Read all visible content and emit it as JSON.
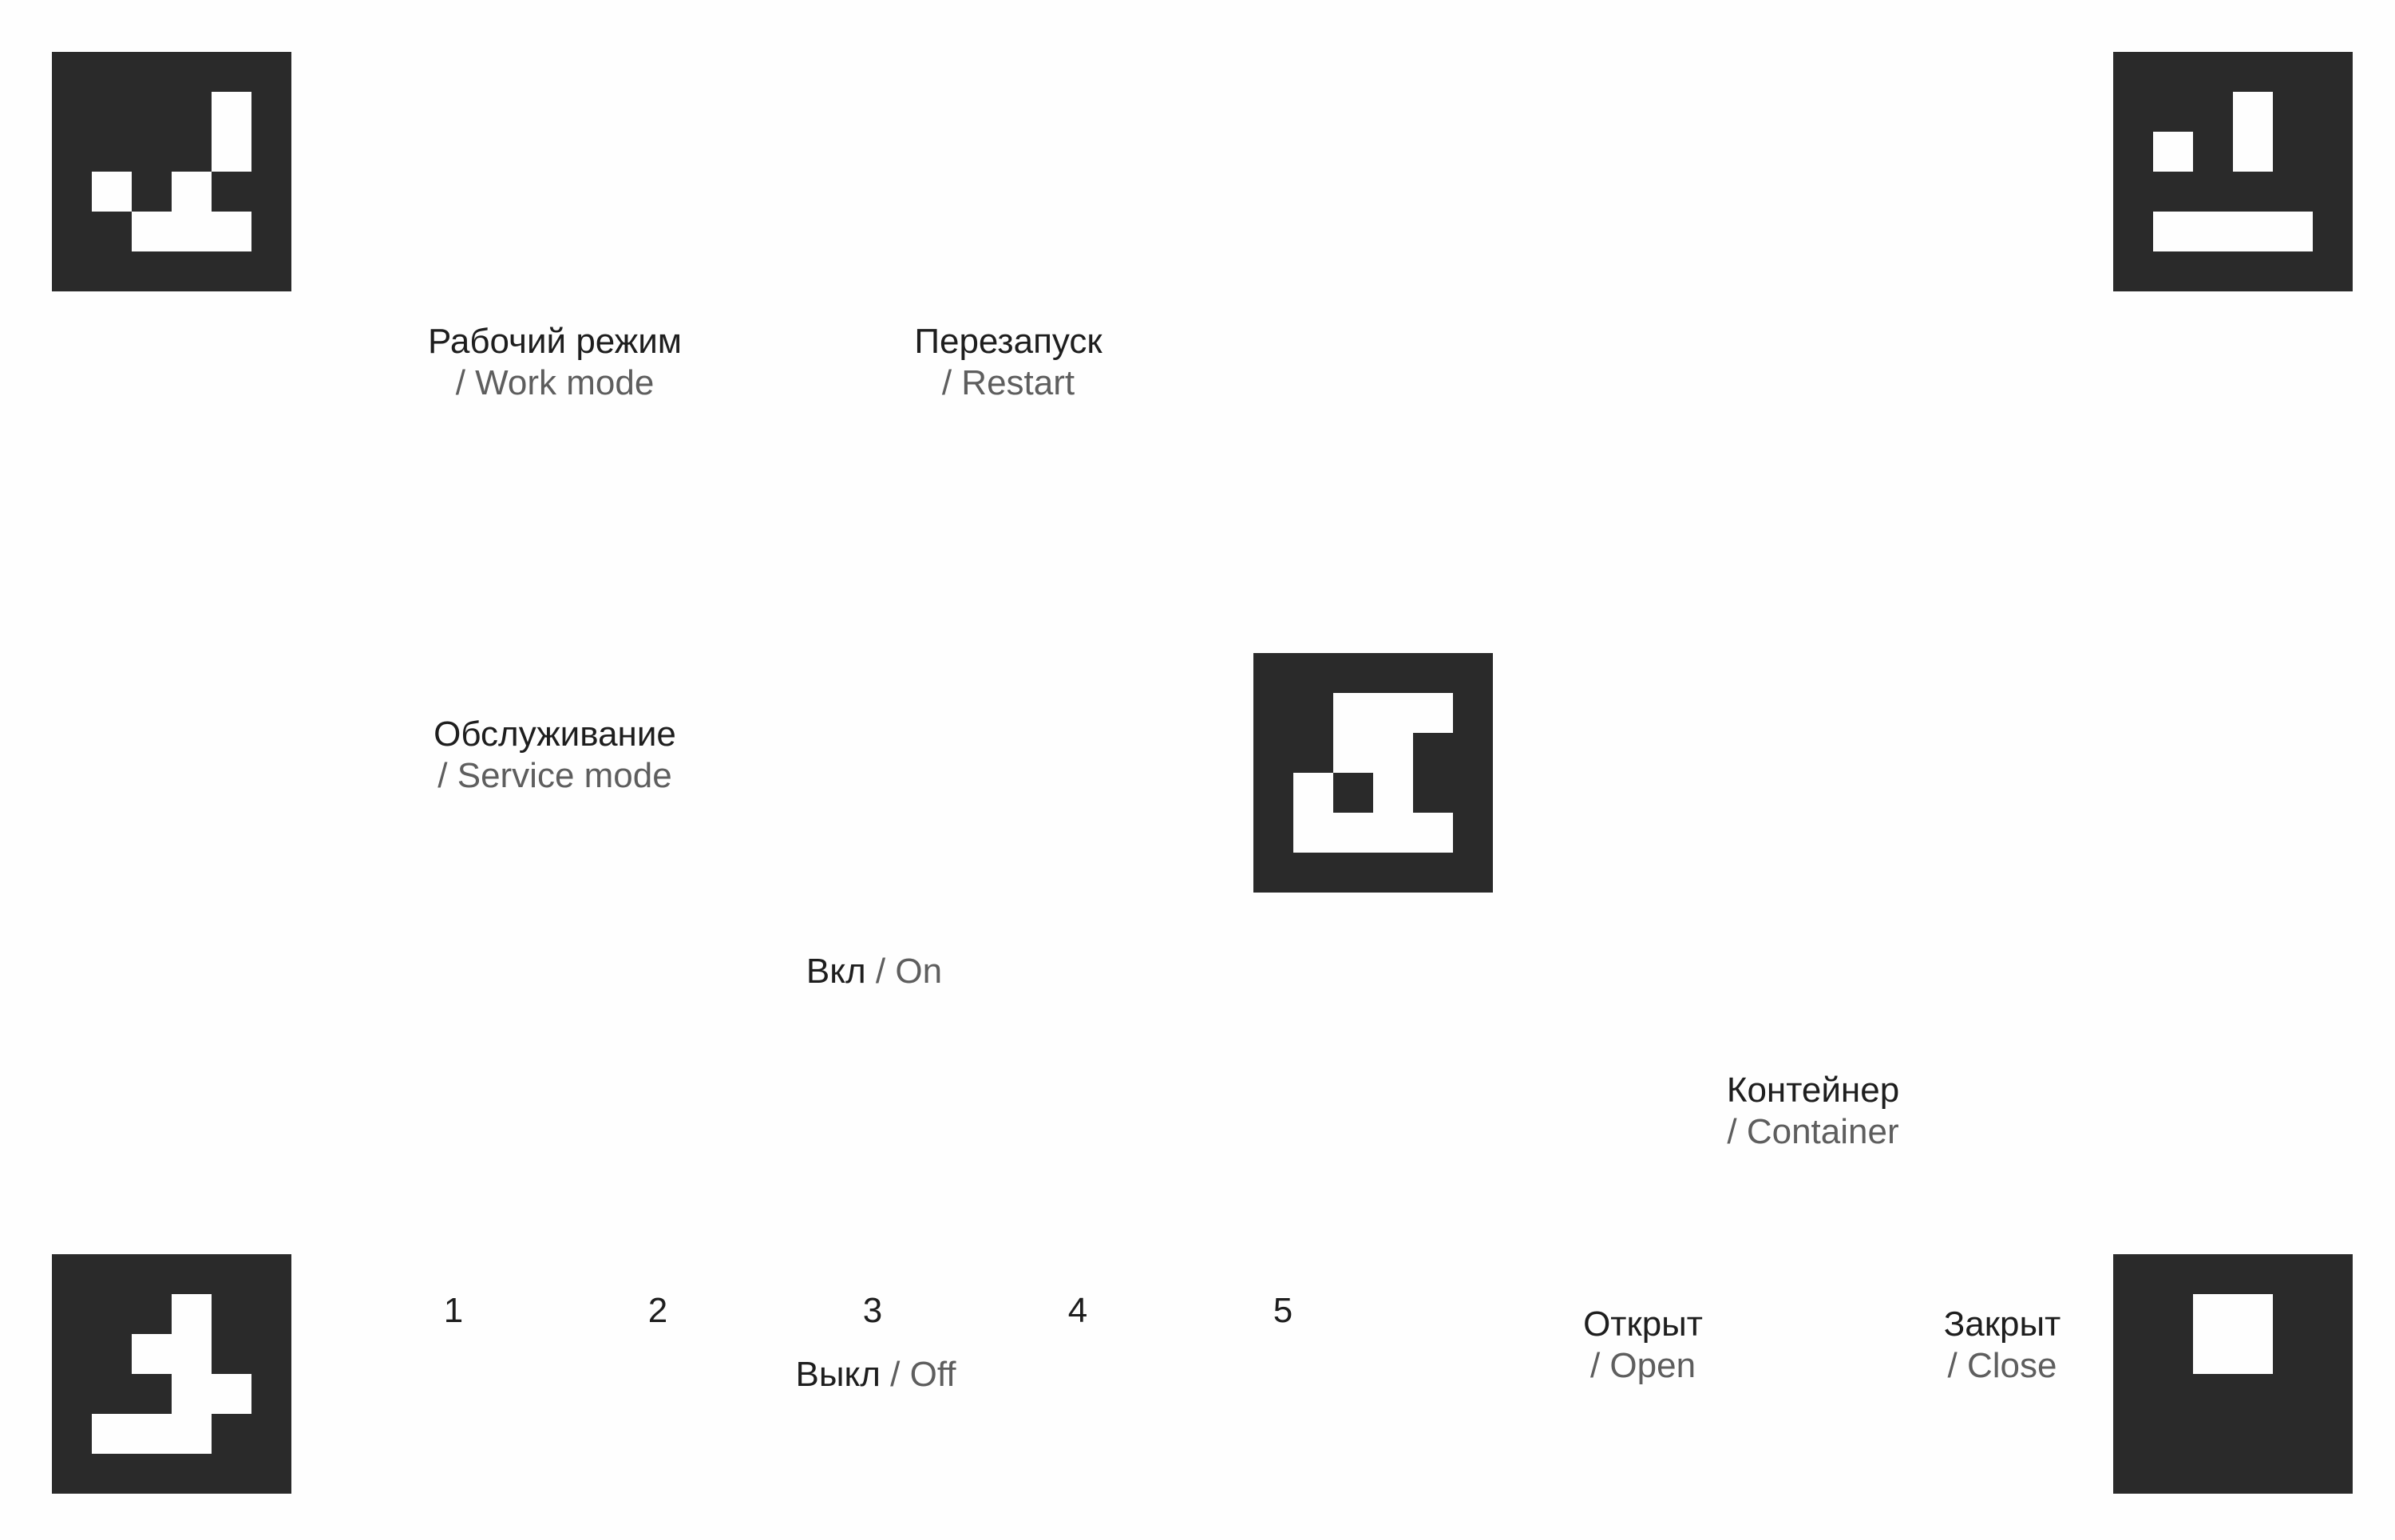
{
  "colors": {
    "background": "#fefefe",
    "marker_dark": "#2a2a2a",
    "marker_light": "#fefefe",
    "text_primary": "#1e1e1e",
    "text_secondary": "#5e5e5e"
  },
  "markers": [
    {
      "id": "top-left",
      "icon": "aruco-marker-icon"
    },
    {
      "id": "top-right",
      "icon": "aruco-marker-icon"
    },
    {
      "id": "center",
      "icon": "aruco-marker-icon"
    },
    {
      "id": "bottom-left",
      "icon": "aruco-marker-icon"
    },
    {
      "id": "bottom-right",
      "icon": "aruco-marker-icon"
    }
  ],
  "labels": {
    "work_mode": {
      "ru": "Рабочий режим",
      "en": "/ Work mode"
    },
    "restart": {
      "ru": "Перезапуск",
      "en": "/ Restart"
    },
    "service_mode": {
      "ru": "Обслуживание",
      "en": "/ Service mode"
    },
    "on": {
      "ru": "Вкл",
      "sep": "/",
      "en": "On"
    },
    "container": {
      "ru": "Контейнер",
      "en": "/ Container"
    },
    "off": {
      "ru": "Выкл",
      "sep": "/",
      "en": "Off"
    },
    "open": {
      "ru": "Открыт",
      "en": "/ Open"
    },
    "close": {
      "ru": "Закрыт",
      "en": "/ Close"
    }
  },
  "numbers": [
    "1",
    "2",
    "3",
    "4",
    "5"
  ]
}
